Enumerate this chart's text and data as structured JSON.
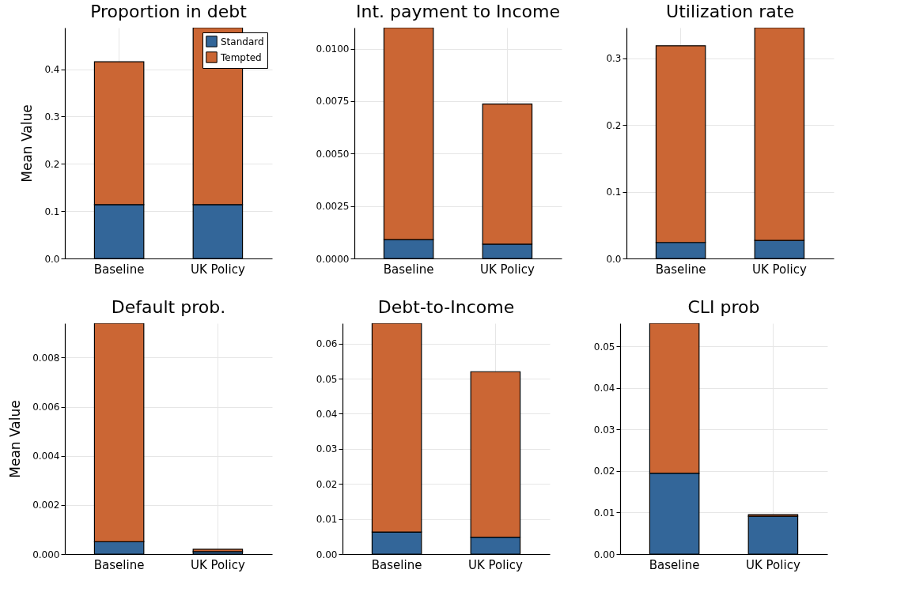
{
  "chart_data": [
    {
      "type": "bar",
      "title": "Proportion in debt",
      "ylabel": "Mean Value",
      "categories": [
        "Baseline",
        "UK Policy"
      ],
      "stacked": true,
      "legend": "top right",
      "grid": true,
      "ylim": [
        0,
        0.488
      ],
      "yticks": [
        {
          "value": 0,
          "label": "0.0"
        },
        0.1,
        0.2,
        0.3,
        0.4
      ],
      "series": [
        {
          "name": "Standard",
          "color": "#336699",
          "values": [
            0.114,
            0.114
          ]
        },
        {
          "name": "Tempted",
          "color": "#cb6634",
          "values": [
            0.302,
            0.374
          ]
        }
      ]
    },
    {
      "type": "bar",
      "title": "Int. payment to Income",
      "categories": [
        "Baseline",
        "UK Policy"
      ],
      "stacked": true,
      "grid": true,
      "ylim": [
        0,
        0.011
      ],
      "yticks": [
        {
          "value": 0,
          "label": "0.0000"
        },
        {
          "value": 0.0025,
          "label": "0.0025"
        },
        {
          "value": 0.005,
          "label": "0.0050"
        },
        {
          "value": 0.0075,
          "label": "0.0075"
        },
        {
          "value": 0.01,
          "label": "0.0100"
        }
      ],
      "series": [
        {
          "color": "#336699",
          "values": [
            0.0009,
            0.00068
          ]
        },
        {
          "color": "#cb6634",
          "values": [
            0.0101,
            0.00668
          ]
        }
      ]
    },
    {
      "type": "bar",
      "title": "Utilization rate",
      "categories": [
        "Baseline",
        "UK Policy"
      ],
      "stacked": true,
      "grid": true,
      "ylim": [
        0,
        0.346
      ],
      "yticks": [
        {
          "value": 0,
          "label": "0.0"
        },
        0.1,
        0.2,
        0.3
      ],
      "series": [
        {
          "color": "#336699",
          "values": [
            0.024,
            0.027
          ]
        },
        {
          "color": "#cb6634",
          "values": [
            0.295,
            0.319
          ]
        }
      ]
    },
    {
      "type": "bar",
      "title": "Default prob.",
      "ylabel": "Mean Value",
      "categories": [
        "Baseline",
        "UK Policy"
      ],
      "stacked": true,
      "grid": true,
      "ylim": [
        0,
        0.0094
      ],
      "yticks": [
        {
          "value": 0,
          "label": "0.000"
        },
        0.002,
        0.004,
        0.006,
        0.008
      ],
      "series": [
        {
          "color": "#336699",
          "values": [
            0.0005,
            0.0001
          ]
        },
        {
          "color": "#cb6634",
          "values": [
            0.0089,
            0.0001
          ]
        }
      ]
    },
    {
      "type": "bar",
      "title": "Debt-to-Income",
      "categories": [
        "Baseline",
        "UK Policy"
      ],
      "stacked": true,
      "grid": true,
      "ylim": [
        0,
        0.0658
      ],
      "yticks": [
        {
          "value": 0,
          "label": "0.00"
        },
        0.01,
        0.02,
        0.03,
        0.04,
        0.05,
        0.06
      ],
      "series": [
        {
          "color": "#336699",
          "values": [
            0.0063,
            0.0048
          ]
        },
        {
          "color": "#cb6634",
          "values": [
            0.0595,
            0.0472
          ]
        }
      ]
    },
    {
      "type": "bar",
      "title": "CLI prob",
      "categories": [
        "Baseline",
        "UK Policy"
      ],
      "stacked": true,
      "grid": true,
      "ylim": [
        0,
        0.0556
      ],
      "yticks": [
        {
          "value": 0,
          "label": "0.00"
        },
        0.01,
        0.02,
        0.03,
        0.04,
        0.05
      ],
      "series": [
        {
          "color": "#336699",
          "values": [
            0.0195,
            0.0091
          ]
        },
        {
          "color": "#cb6634",
          "values": [
            0.0361,
            0.0004
          ]
        }
      ]
    }
  ]
}
